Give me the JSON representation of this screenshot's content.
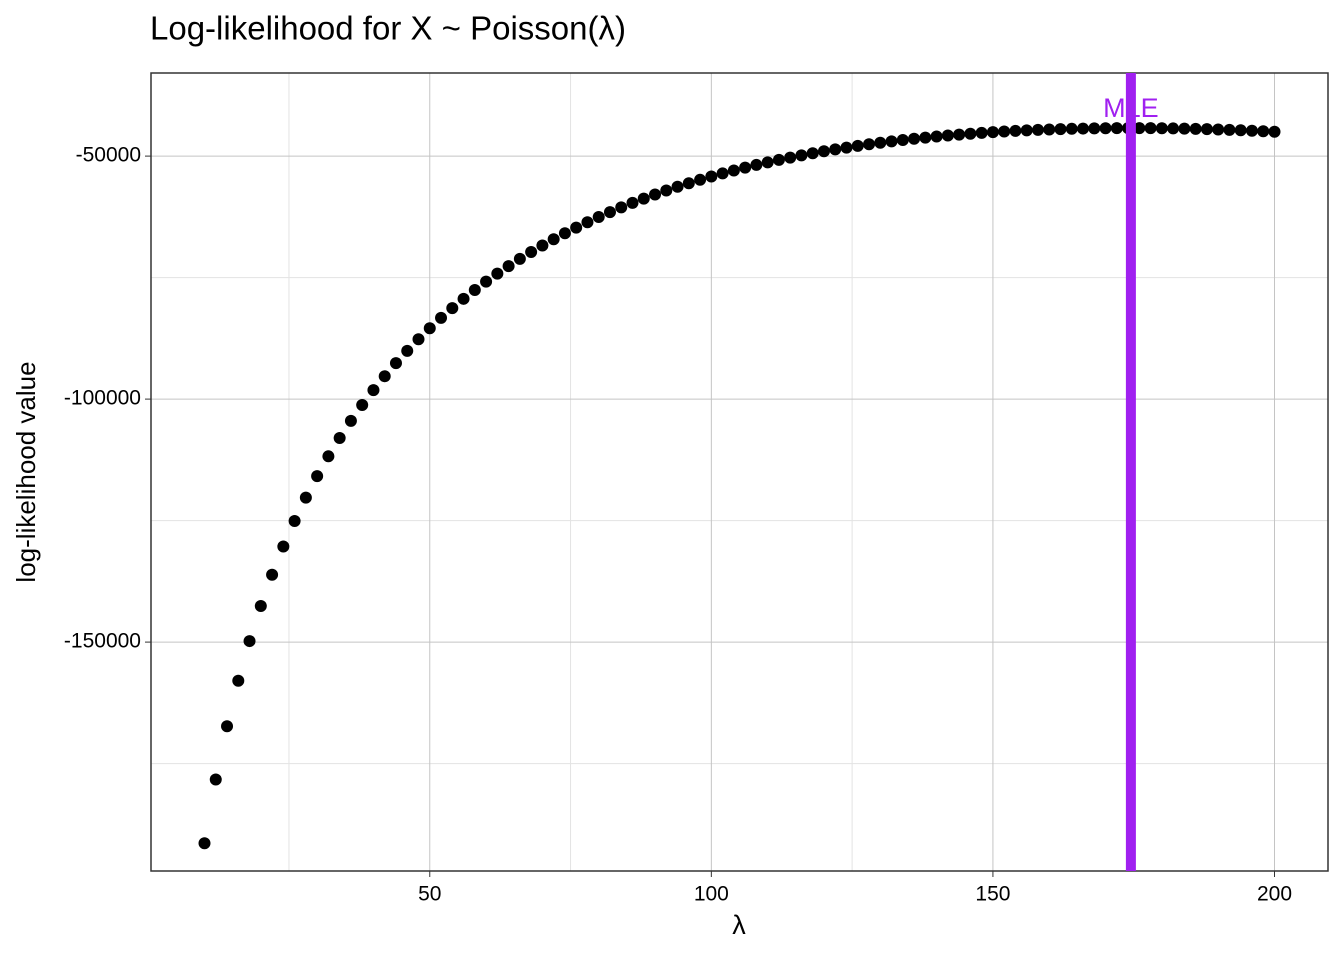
{
  "chart_data": {
    "type": "scatter",
    "title": "Log-likelihood for X ~ Poisson(λ)",
    "x_label": "λ",
    "y_label": "log-likelihood value",
    "color": "#000000",
    "x": [
      10,
      12,
      14,
      16,
      18,
      20,
      22,
      24,
      26,
      28,
      30,
      32,
      34,
      36,
      38,
      40,
      42,
      44,
      46,
      48,
      50,
      52,
      54,
      56,
      58,
      60,
      62,
      64,
      66,
      68,
      70,
      72,
      74,
      76,
      78,
      80,
      82,
      84,
      86,
      88,
      90,
      92,
      94,
      96,
      98,
      100,
      102,
      104,
      106,
      108,
      110,
      112,
      114,
      116,
      118,
      120,
      122,
      124,
      126,
      128,
      130,
      132,
      134,
      136,
      138,
      140,
      142,
      144,
      146,
      148,
      150,
      152,
      154,
      156,
      158,
      160,
      162,
      164,
      166,
      168,
      170,
      172,
      174,
      176,
      178,
      180,
      182,
      184,
      186,
      188,
      190,
      192,
      194,
      196,
      198,
      200
    ],
    "values": [
      -191399,
      -178280,
      -167324,
      -157952,
      -149788,
      -142579,
      -136141,
      -130340,
      -125074,
      -120264,
      -115847,
      -111772,
      -107997,
      -104488,
      -101217,
      -98159,
      -95293,
      -92601,
      -90068,
      -87680,
      -85426,
      -83294,
      -81277,
      -79365,
      -77550,
      -75827,
      -74190,
      -72632,
      -71149,
      -69737,
      -68391,
      -67109,
      -65885,
      -64717,
      -63603,
      -62539,
      -61523,
      -60553,
      -59626,
      -58741,
      -57896,
      -57088,
      -56317,
      -55580,
      -54877,
      -54206,
      -53566,
      -52955,
      -52372,
      -51817,
      -51288,
      -50785,
      -50306,
      -49850,
      -49418,
      -49007,
      -48618,
      -48250,
      -47901,
      -47572,
      -47262,
      -46969,
      -46695,
      -46437,
      -46196,
      -45972,
      -45763,
      -45569,
      -45390,
      -45225,
      -45074,
      -44938,
      -44814,
      -44703,
      -44605,
      -44519,
      -44445,
      -44383,
      -44333,
      -44293,
      -44264,
      -44246,
      -44239,
      -44241,
      -44254,
      -44276,
      -44307,
      -44348,
      -44398,
      -44457,
      -44524,
      -44601,
      -44685,
      -44777,
      -44878,
      -44986
    ],
    "vline": {
      "x": 174.5,
      "label": "MLE",
      "color": "#a020f0"
    },
    "xlim": [
      0.5,
      209.5
    ],
    "ylim": [
      -197100,
      -32900
    ],
    "xticks": [
      50,
      100,
      150,
      200
    ],
    "yticks": [
      -50000,
      -100000,
      -150000
    ],
    "x_minor_grid": [
      25,
      75,
      125,
      175
    ],
    "y_minor_grid": [
      -75000,
      -125000,
      -175000
    ],
    "grid": true
  }
}
